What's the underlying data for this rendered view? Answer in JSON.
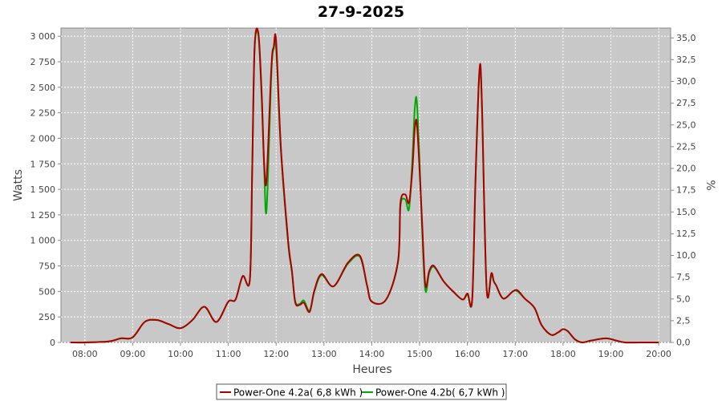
{
  "chart_data": {
    "type": "line",
    "title": "27-9-2025",
    "xlabel": "Heures",
    "ylabel": "Watts",
    "y2label": "%",
    "xlim": [
      7.5,
      20.25
    ],
    "ylim": [
      0,
      3080
    ],
    "y2lim": [
      0,
      36.13
    ],
    "grid": true,
    "legend_position": "bottom",
    "x_ticks": [
      {
        "v": 8,
        "label": "08:00"
      },
      {
        "v": 9,
        "label": "09:00"
      },
      {
        "v": 10,
        "label": "10:00"
      },
      {
        "v": 11,
        "label": "11:00"
      },
      {
        "v": 12,
        "label": "12:00"
      },
      {
        "v": 13,
        "label": "13:00"
      },
      {
        "v": 14,
        "label": "14:00"
      },
      {
        "v": 15,
        "label": "15:00"
      },
      {
        "v": 16,
        "label": "16:00"
      },
      {
        "v": 17,
        "label": "17:00"
      },
      {
        "v": 18,
        "label": "18:00"
      },
      {
        "v": 19,
        "label": "19:00"
      },
      {
        "v": 20,
        "label": "20:00"
      }
    ],
    "y_ticks": [
      {
        "v": 0,
        "label": "0"
      },
      {
        "v": 250,
        "label": "250"
      },
      {
        "v": 500,
        "label": "500"
      },
      {
        "v": 750,
        "label": "750"
      },
      {
        "v": 1000,
        "label": "1 000"
      },
      {
        "v": 1250,
        "label": "1 250"
      },
      {
        "v": 1500,
        "label": "1 500"
      },
      {
        "v": 1750,
        "label": "1 750"
      },
      {
        "v": 2000,
        "label": "2 000"
      },
      {
        "v": 2250,
        "label": "2 250"
      },
      {
        "v": 2500,
        "label": "2 500"
      },
      {
        "v": 2750,
        "label": "2 750"
      },
      {
        "v": 3000,
        "label": "3 000"
      }
    ],
    "y2_ticks": [
      {
        "v": 0,
        "label": "0,0"
      },
      {
        "v": 2.5,
        "label": "2,5"
      },
      {
        "v": 5,
        "label": "5,0"
      },
      {
        "v": 7.5,
        "label": "7,5"
      },
      {
        "v": 10,
        "label": "10,0"
      },
      {
        "v": 12.5,
        "label": "12,5"
      },
      {
        "v": 15,
        "label": "15,0"
      },
      {
        "v": 17.5,
        "label": "17,5"
      },
      {
        "v": 20,
        "label": "20,0"
      },
      {
        "v": 22.5,
        "label": "22,5"
      },
      {
        "v": 25,
        "label": "25,0"
      },
      {
        "v": 27.5,
        "label": "27,5"
      },
      {
        "v": 30,
        "label": "30,0"
      },
      {
        "v": 32.5,
        "label": "32,5"
      },
      {
        "v": 35,
        "label": "35,0"
      }
    ],
    "series": [
      {
        "name": "Power-One 4.2a( 6,8 kWh )",
        "color": "#aa0000",
        "x": [
          7.7,
          8.0,
          8.5,
          8.75,
          9.0,
          9.25,
          9.5,
          9.75,
          10.0,
          10.25,
          10.5,
          10.75,
          11.0,
          11.15,
          11.3,
          11.45,
          11.5,
          11.55,
          11.63,
          11.7,
          11.75,
          11.8,
          11.9,
          11.95,
          12.0,
          12.1,
          12.25,
          12.33,
          12.4,
          12.5,
          12.58,
          12.7,
          12.8,
          12.95,
          13.2,
          13.5,
          13.75,
          13.9,
          14.0,
          14.3,
          14.55,
          14.6,
          14.7,
          14.78,
          14.85,
          14.9,
          14.95,
          15.05,
          15.12,
          15.2,
          15.3,
          15.5,
          15.7,
          15.9,
          16.0,
          16.1,
          16.17,
          16.25,
          16.3,
          16.4,
          16.5,
          16.55,
          16.6,
          16.75,
          16.95,
          17.05,
          17.2,
          17.4,
          17.55,
          17.75,
          17.9,
          18.0,
          18.1,
          18.25,
          18.4,
          18.6,
          18.9,
          19.1,
          19.3,
          19.6,
          19.9,
          20.0
        ],
        "values": [
          0,
          0,
          10,
          40,
          50,
          200,
          220,
          180,
          140,
          220,
          350,
          200,
          400,
          420,
          650,
          620,
          1700,
          2900,
          3020,
          2400,
          1750,
          1600,
          2700,
          2900,
          2950,
          1900,
          1000,
          700,
          390,
          370,
          390,
          300,
          510,
          670,
          550,
          780,
          850,
          560,
          400,
          420,
          800,
          1370,
          1450,
          1370,
          1700,
          2100,
          2100,
          1200,
          560,
          700,
          750,
          600,
          500,
          420,
          480,
          420,
          1620,
          2660,
          2400,
          540,
          680,
          600,
          560,
          430,
          500,
          510,
          430,
          340,
          170,
          75,
          100,
          130,
          110,
          30,
          0,
          20,
          40,
          20,
          0,
          0,
          0,
          0
        ]
      },
      {
        "name": "Power-One 4.2b( 6,7 kWh )",
        "color": "#00aa00",
        "x": [
          7.7,
          8.0,
          8.5,
          8.75,
          9.0,
          9.25,
          9.5,
          9.75,
          10.0,
          10.25,
          10.5,
          10.75,
          11.0,
          11.15,
          11.3,
          11.45,
          11.5,
          11.55,
          11.63,
          11.7,
          11.75,
          11.8,
          11.9,
          11.95,
          12.0,
          12.1,
          12.25,
          12.33,
          12.4,
          12.5,
          12.58,
          12.7,
          12.8,
          12.95,
          13.2,
          13.5,
          13.75,
          13.9,
          14.0,
          14.3,
          14.55,
          14.6,
          14.7,
          14.78,
          14.85,
          14.9,
          14.95,
          15.05,
          15.12,
          15.2,
          15.3,
          15.5,
          15.7,
          15.9,
          16.0,
          16.1,
          16.17,
          16.25,
          16.3,
          16.4,
          16.5,
          16.55,
          16.6,
          16.75,
          16.95,
          17.05,
          17.2,
          17.4,
          17.55,
          17.75,
          17.9,
          18.0,
          18.1,
          18.25,
          18.4,
          18.6,
          18.9,
          19.1,
          19.3,
          19.6,
          19.9,
          20.0
        ],
        "values": [
          0,
          0,
          10,
          40,
          50,
          200,
          220,
          180,
          140,
          220,
          350,
          200,
          400,
          420,
          650,
          620,
          1700,
          2880,
          3000,
          2350,
          1700,
          1300,
          2650,
          2880,
          2880,
          1880,
          980,
          690,
          400,
          380,
          410,
          310,
          500,
          660,
          550,
          770,
          840,
          560,
          400,
          420,
          790,
          1340,
          1400,
          1310,
          1800,
          2300,
          2300,
          1150,
          510,
          680,
          740,
          600,
          500,
          420,
          470,
          420,
          1600,
          2640,
          2380,
          540,
          660,
          600,
          560,
          430,
          500,
          500,
          430,
          340,
          170,
          75,
          100,
          130,
          110,
          30,
          0,
          20,
          40,
          20,
          0,
          0,
          0,
          0
        ]
      }
    ]
  }
}
